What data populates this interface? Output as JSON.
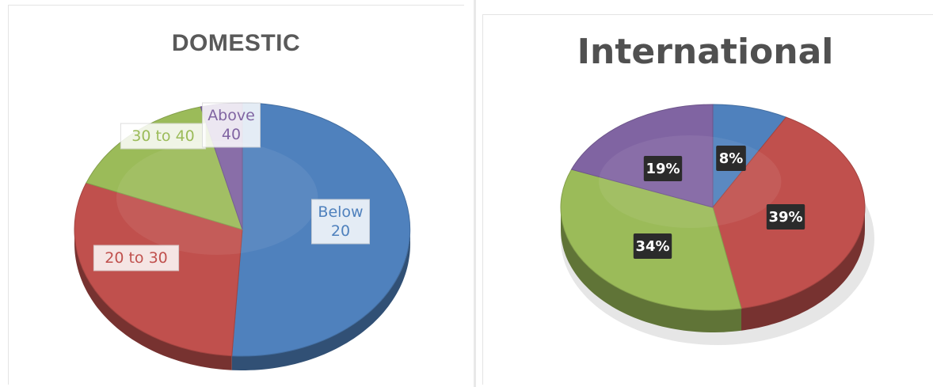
{
  "chart_data": [
    {
      "type": "pie",
      "title": "DOMESTIC",
      "categories": [
        "Below 20",
        "20 to 30",
        "30 to 40",
        "Above 40"
      ],
      "values": [
        51,
        30,
        15,
        4
      ],
      "data_labels": [
        "Below 20",
        "20 to 30",
        "30 to 40",
        "Above 40"
      ],
      "colors": [
        "#4f81bd",
        "#c0504d",
        "#9bbb59",
        "#8064a2"
      ]
    },
    {
      "type": "pie",
      "title": "International",
      "categories": [
        "",
        "",
        "",
        ""
      ],
      "values": [
        8,
        39,
        34,
        19
      ],
      "data_labels": [
        "8%",
        "39%",
        "34%",
        "19%"
      ],
      "colors": [
        "#4f81bd",
        "#c0504d",
        "#9bbb59",
        "#8064a2"
      ]
    }
  ]
}
